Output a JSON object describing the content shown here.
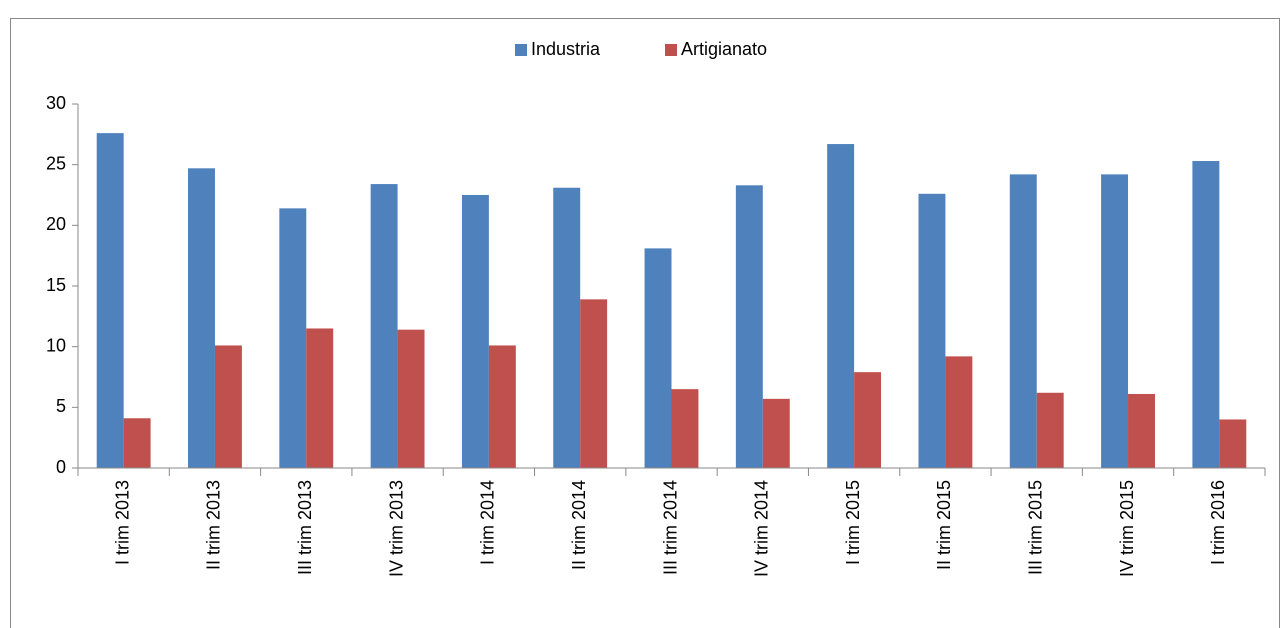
{
  "chart_data": {
    "type": "bar",
    "categories": [
      "I trim 2013",
      "II trim 2013",
      "III trim 2013",
      "IV trim 2013",
      "I trim 2014",
      "II trim 2014",
      "III trim 2014",
      "IV trim 2014",
      "I trim 2015",
      "II trim 2015",
      "III trim 2015",
      "IV trim 2015",
      "I trim 2016"
    ],
    "series": [
      {
        "name": "Industria",
        "color": "#4f81bd",
        "values": [
          27.6,
          24.7,
          21.4,
          23.4,
          22.5,
          23.1,
          18.1,
          23.3,
          26.7,
          22.6,
          24.2,
          24.2,
          25.3
        ]
      },
      {
        "name": "Artigianato",
        "color": "#c0504d",
        "values": [
          4.1,
          10.1,
          11.5,
          11.4,
          10.1,
          13.9,
          6.5,
          5.7,
          7.9,
          9.2,
          6.2,
          6.1,
          4.0
        ]
      }
    ],
    "ylim": [
      0,
      30
    ],
    "yticks": [
      0,
      5,
      10,
      15,
      20,
      25,
      30
    ],
    "grid": false,
    "legend": "top"
  }
}
